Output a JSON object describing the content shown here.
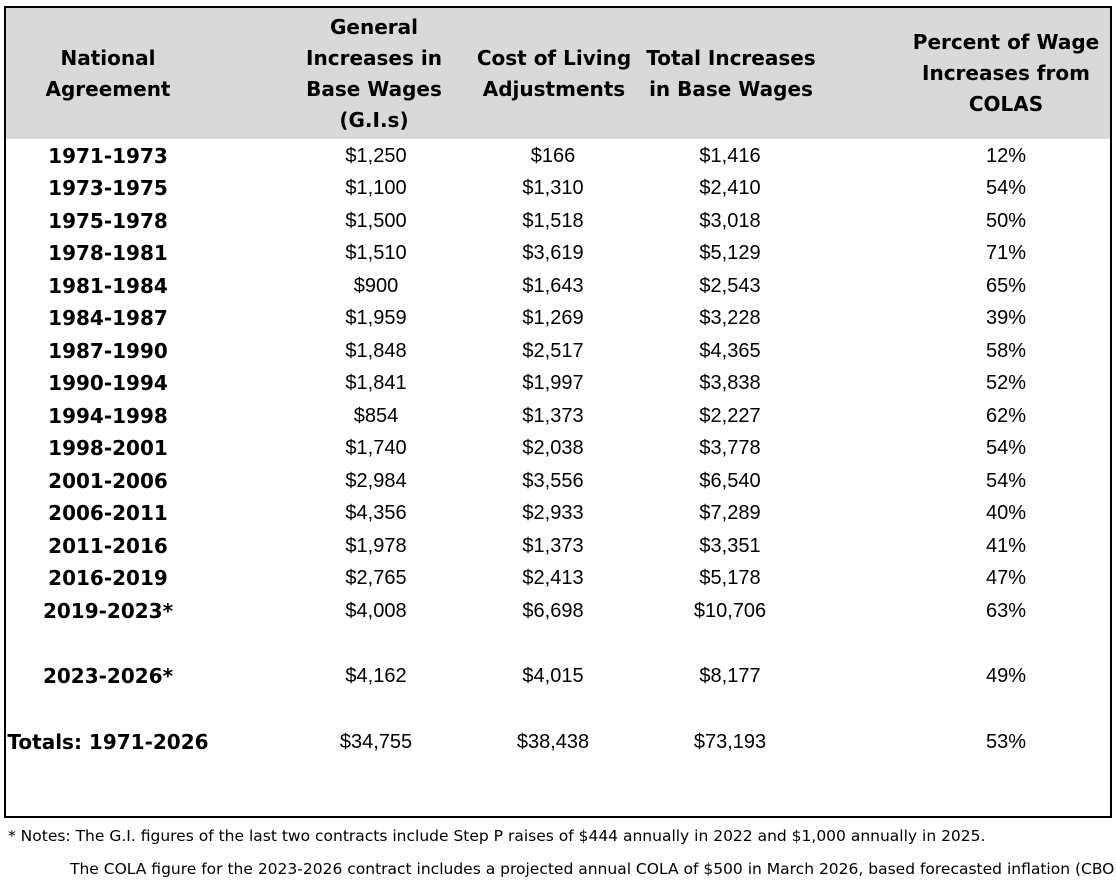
{
  "headers": [
    "National\nAgreement",
    "General\nIncreases in\nBase Wages\n(G.I.s)",
    "Cost of Living\nAdjustments",
    "Total Increases\nin Base Wages",
    "Percent of Wage\nIncreases from\nCOLAS"
  ],
  "rows": [
    [
      "1971-1973",
      "$1,250",
      "$166",
      "$1,416",
      "12%"
    ],
    [
      "1973-1975",
      "$1,100",
      "$1,310",
      "$2,410",
      "54%"
    ],
    [
      "1975-1978",
      "$1,500",
      "$1,518",
      "$3,018",
      "50%"
    ],
    [
      "1978-1981",
      "$1,510",
      "$3,619",
      "$5,129",
      "71%"
    ],
    [
      "1981-1984",
      "$900",
      "$1,643",
      "$2,543",
      "65%"
    ],
    [
      "1984-1987",
      "$1,959",
      "$1,269",
      "$3,228",
      "39%"
    ],
    [
      "1987-1990",
      "$1,848",
      "$2,517",
      "$4,365",
      "58%"
    ],
    [
      "1990-1994",
      "$1,841",
      "$1,997",
      "$3,838",
      "52%"
    ],
    [
      "1994-1998",
      "$854",
      "$1,373",
      "$2,227",
      "62%"
    ],
    [
      "1998-2001",
      "$1,740",
      "$2,038",
      "$3,778",
      "54%"
    ],
    [
      "2001-2006",
      "$2,984",
      "$3,556",
      "$6,540",
      "54%"
    ],
    [
      "2006-2011",
      "$4,356",
      "$2,933",
      "$7,289",
      "40%"
    ],
    [
      "2011-2016",
      "$1,978",
      "$1,373",
      "$3,351",
      "41%"
    ],
    [
      "2016-2019",
      "$2,765",
      "$2,413",
      "$5,178",
      "47%"
    ],
    [
      "2019-2023*",
      "$4,008",
      "$6,698",
      "$10,706",
      "63%"
    ],
    [
      "2023-2026*",
      "$4,162",
      "$4,015",
      "$8,177",
      "49%"
    ],
    [
      "Totals: 1971-2026",
      "$34,755",
      "$38,438",
      "$73,193",
      "53%"
    ]
  ],
  "notes": [
    "* Notes: The G.I. figures of the last two contracts include Step P raises of $444 annually in 2022 and $1,000 annually in 2025.",
    "The COLA figure for the 2023-2026 contract includes a projected annual COLA of $500 in March 2026, based  forecasted inflation (CBO)."
  ]
}
